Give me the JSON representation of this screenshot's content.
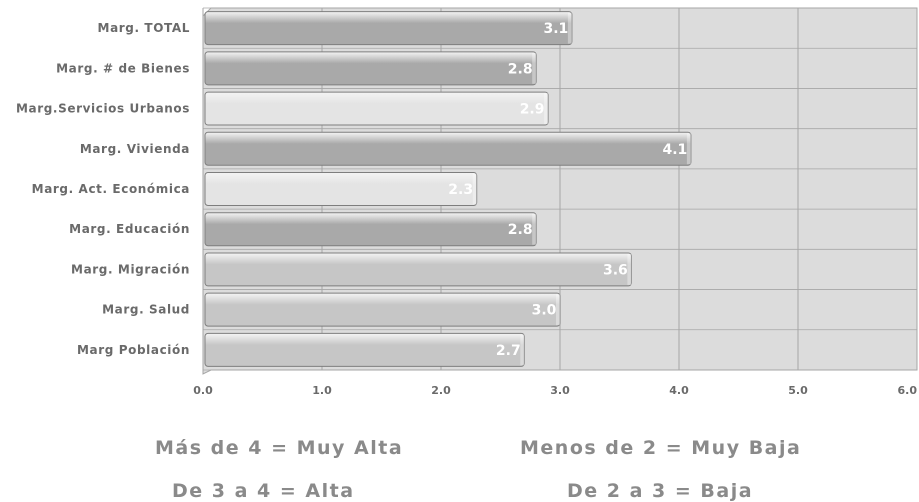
{
  "chart_data": {
    "type": "bar",
    "orientation": "horizontal",
    "categories": [
      "Marg. TOTAL",
      "Marg. # de Bienes",
      "Marg.Servicios Urbanos",
      "Marg. Vivienda",
      "Marg. Act. Económica",
      "Marg. Educación",
      "Marg. Migración",
      "Marg. Salud",
      "Marg Población"
    ],
    "values": [
      3.1,
      2.8,
      2.9,
      4.1,
      2.3,
      2.8,
      3.6,
      3.0,
      2.7
    ],
    "value_labels": [
      "3.1",
      "2.8",
      "2.9",
      "4.1",
      "2.3",
      "2.8",
      "3.6",
      "3.0",
      "2.7"
    ],
    "bar_tones": [
      "dark",
      "dark",
      "light",
      "dark",
      "light",
      "dark",
      "mid",
      "mid",
      "mid"
    ],
    "xlim": [
      0,
      6
    ],
    "x_ticks": [
      "0.0",
      "1.0",
      "2.0",
      "3.0",
      "4.0",
      "5.0",
      "6.0"
    ],
    "grid": true
  },
  "legend": {
    "muy_alta": "Más de 4 = Muy Alta",
    "muy_baja": "Menos de 2 = Muy Baja",
    "alta": "De 3 a 4 = Alta",
    "baja": "De 2 a 3 = Baja"
  },
  "colors": {
    "plot_bg": "#dcdcdc",
    "grid": "#a6a6a6",
    "bar_dark": "#a9a9a9",
    "bar_mid": "#c6c6c6",
    "bar_light": "#e4e4e4",
    "bar_border": "#7e7e7e",
    "label_text": "#6a6a6a",
    "value_text": "#ffffff"
  }
}
